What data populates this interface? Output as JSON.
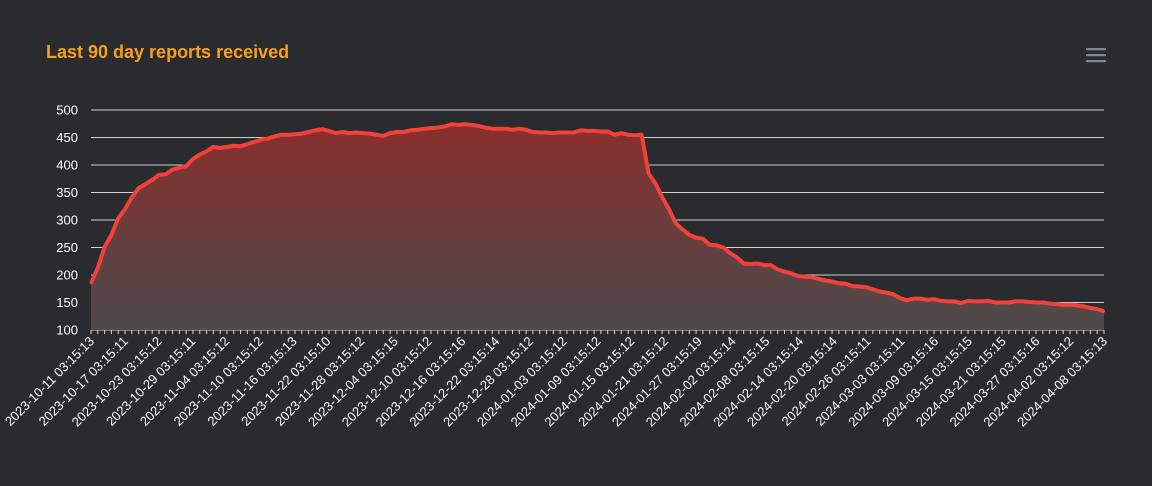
{
  "header": {
    "title": "Last 90 day reports received",
    "menu_icon": "hamburger-menu-icon"
  },
  "colors": {
    "background": "#2a2b2e",
    "title": "#f7a01d",
    "line": "#f0423a",
    "area_top": "#8a2e2c",
    "area_bottom": "#4d4b4b",
    "grid": "#cfcfcf",
    "label": "#ffffff",
    "menu_icon": "#7e8a99"
  },
  "chart_data": {
    "type": "area",
    "title": "Last 90 day reports received",
    "xlabel": "",
    "ylabel": "",
    "ylim": [
      100,
      500
    ],
    "yticks": [
      100,
      150,
      200,
      250,
      300,
      350,
      400,
      450,
      500
    ],
    "grid": true,
    "legend": "none",
    "x_tick_labels": [
      "2023-10-11 03:15:13",
      "2023-10-17 03:15:11",
      "2023-10-23 03:15:12",
      "2023-10-29 03:15:11",
      "2023-11-04 03:15:12",
      "2023-11-10 03:15:12",
      "2023-11-16 03:15:13",
      "2023-11-22 03:15:10",
      "2023-11-28 03:15:12",
      "2023-12-04 03:15:15",
      "2023-12-10 03:15:12",
      "2023-12-16 03:15:16",
      "2023-12-22 03:15:14",
      "2023-12-28 03:15:12",
      "2024-01-03 03:15:12",
      "2024-01-09 03:15:12",
      "2024-01-15 03:15:12",
      "2024-01-21 03:15:12",
      "2024-01-27 03:15:19",
      "2024-02-02 03:15:14",
      "2024-02-08 03:15:15",
      "2024-02-14 03:15:14",
      "2024-02-20 03:15:14",
      "2024-02-26 03:15:11",
      "2024-03-03 03:15:11",
      "2024-03-09 03:15:16",
      "2024-03-15 03:15:15",
      "2024-03-21 03:15:15",
      "2024-03-27 03:15:16",
      "2024-04-02 03:15:12",
      "2024-04-08 03:15:13"
    ],
    "series": [
      {
        "values": [
          185,
          213,
          251,
          273,
          303,
          320,
          341,
          358,
          365,
          373,
          382,
          383,
          392,
          395,
          398,
          411,
          419,
          425,
          433,
          431,
          433,
          435,
          434,
          438,
          442,
          446,
          448,
          452,
          455,
          455,
          456,
          457,
          460,
          463,
          465,
          462,
          458,
          460,
          458,
          459,
          458,
          457,
          455,
          453,
          458,
          460,
          460,
          463,
          464,
          466,
          467,
          468,
          470,
          474,
          473,
          474,
          473,
          471,
          468,
          466,
          466,
          466,
          464,
          466,
          464,
          460,
          459,
          459,
          458,
          459,
          459,
          459,
          463,
          462,
          462,
          461,
          461,
          455,
          458,
          455,
          454,
          455,
          385,
          367,
          342,
          320,
          294,
          283,
          273,
          268,
          266,
          255,
          254,
          250,
          240,
          232,
          221,
          220,
          221,
          218,
          218,
          210,
          206,
          203,
          198,
          197,
          196,
          193,
          190,
          188,
          185,
          184,
          180,
          179,
          178,
          174,
          170,
          168,
          165,
          158,
          154,
          157,
          157,
          155,
          156,
          153,
          152,
          152,
          149,
          153,
          152,
          152,
          153,
          150,
          150,
          150,
          152,
          152,
          151,
          150,
          150,
          148,
          147,
          146,
          146,
          145,
          143,
          140,
          138,
          134
        ]
      }
    ]
  }
}
